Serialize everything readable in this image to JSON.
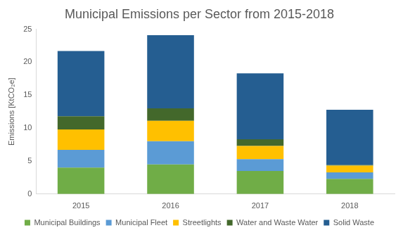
{
  "chart_data": {
    "type": "bar",
    "title": "Municipal Emissions per Sector from 2015-2018",
    "y_label": "Emissions [KtCO₂e]",
    "categories": [
      "2015",
      "2016",
      "2017",
      "2018"
    ],
    "series": [
      {
        "name": "Municipal Buildings",
        "color": "#70ad47",
        "values": [
          4.0,
          4.5,
          3.5,
          2.3
        ]
      },
      {
        "name": "Municipal Fleet",
        "color": "#5b9bd5",
        "values": [
          2.7,
          3.5,
          1.8,
          1.0
        ]
      },
      {
        "name": "Streetlights",
        "color": "#ffc000",
        "values": [
          3.1,
          3.1,
          2.0,
          1.0
        ]
      },
      {
        "name": "Water and Waste Water",
        "color": "#43682b",
        "values": [
          2.0,
          1.9,
          1.0,
          0.1
        ]
      },
      {
        "name": "Solid Waste",
        "color": "#255e91",
        "values": [
          9.9,
          11.1,
          10.0,
          8.4
        ]
      }
    ],
    "stacked": true,
    "ylim": [
      0,
      25
    ],
    "yticks": [
      0,
      5,
      10,
      15,
      20,
      25
    ],
    "grid": false,
    "legend": "bottom"
  }
}
